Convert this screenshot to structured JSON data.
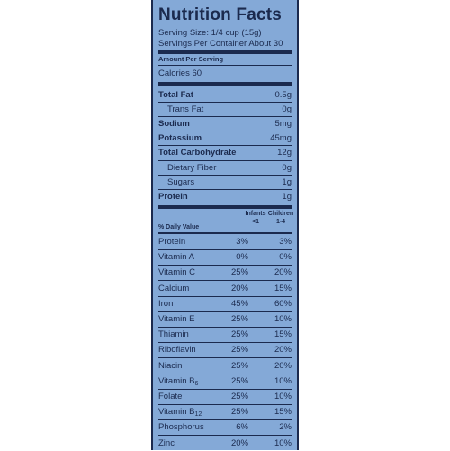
{
  "label": {
    "title": "Nutrition Facts",
    "serving_size": "Serving Size: 1/4 cup (15g)",
    "servings_per_container": "Servings Per Container About 30",
    "amount_per_serving": "Amount Per Serving",
    "calories": "Calories 60",
    "nutrients": [
      {
        "name": "Total Fat",
        "value": "0.5g",
        "bold": true,
        "indent": false
      },
      {
        "name": "Trans Fat",
        "value": "0g",
        "bold": false,
        "indent": true
      },
      {
        "name": "Sodium",
        "value": "5mg",
        "bold": true,
        "indent": false
      },
      {
        "name": "Potassium",
        "value": "45mg",
        "bold": true,
        "indent": false
      },
      {
        "name": "Total Carbohydrate",
        "value": "12g",
        "bold": true,
        "indent": false
      },
      {
        "name": "Dietary Fiber",
        "value": "0g",
        "bold": false,
        "indent": true
      },
      {
        "name": "Sugars",
        "value": "1g",
        "bold": false,
        "indent": true
      },
      {
        "name": "Protein",
        "value": "1g",
        "bold": true,
        "indent": false
      }
    ],
    "dv_header": {
      "label": "% Daily Value",
      "col1_line1": "Infants",
      "col1_line2": "<1",
      "col2_line1": "Children",
      "col2_line2": "1-4"
    },
    "daily_values": [
      {
        "name": "Protein",
        "infants": "3%",
        "children": "3%"
      },
      {
        "name": "Vitamin A",
        "infants": "0%",
        "children": "0%"
      },
      {
        "name": "Vitamin C",
        "infants": "25%",
        "children": "20%"
      },
      {
        "name": "Calcium",
        "infants": "20%",
        "children": "15%"
      },
      {
        "name": "Iron",
        "infants": "45%",
        "children": "60%"
      },
      {
        "name": "Vitamin E",
        "infants": "25%",
        "children": "10%"
      },
      {
        "name": "Thiamin",
        "infants": "25%",
        "children": "15%"
      },
      {
        "name": "Riboflavin",
        "infants": "25%",
        "children": "20%"
      },
      {
        "name": "Niacin",
        "infants": "25%",
        "children": "20%"
      },
      {
        "name": "Vitamin B6",
        "infants": "25%",
        "children": "10%"
      },
      {
        "name": "Folate",
        "infants": "25%",
        "children": "10%"
      },
      {
        "name": "Vitamin B12",
        "infants": "25%",
        "children": "15%"
      },
      {
        "name": "Phosphorus",
        "infants": "6%",
        "children": "2%"
      },
      {
        "name": "Zinc",
        "infants": "20%",
        "children": "10%"
      }
    ],
    "colors": {
      "background": "#84a9d7",
      "text": "#1b2a4e"
    }
  }
}
